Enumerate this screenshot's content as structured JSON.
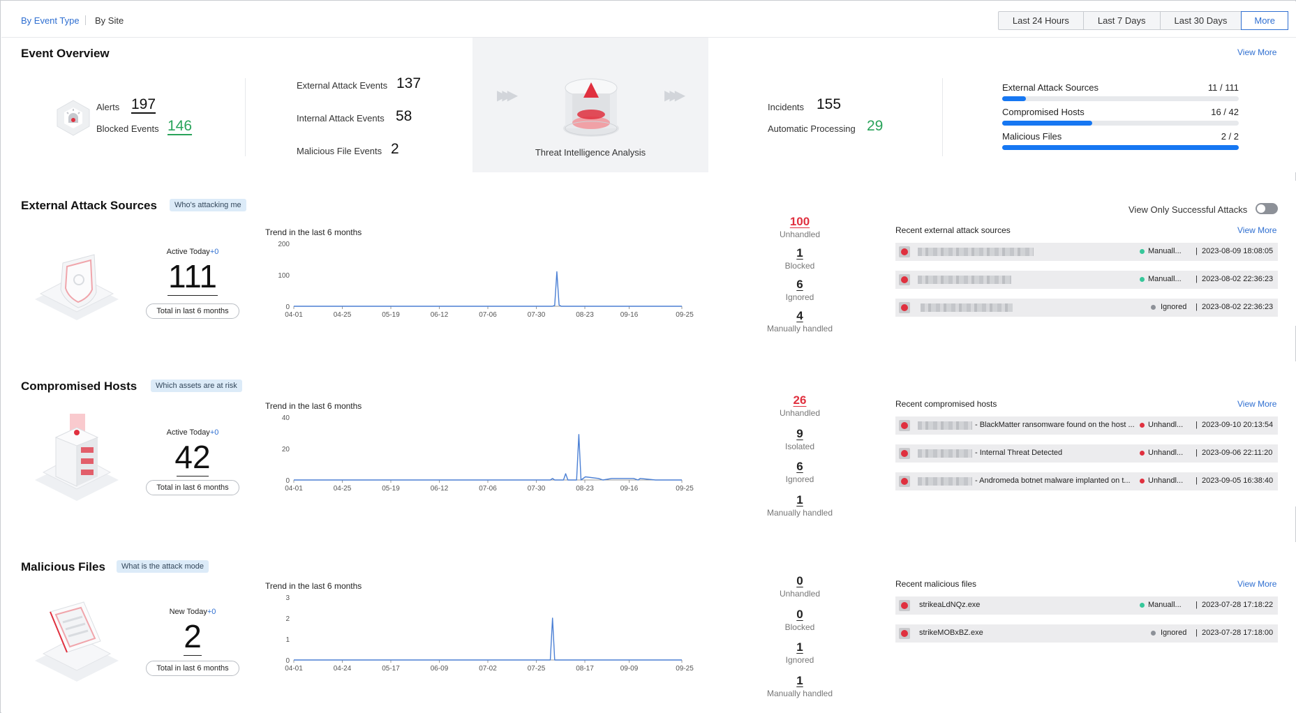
{
  "tabs": {
    "by_event_type": "By Event Type",
    "by_site": "By Site"
  },
  "time_range": [
    "Last 24 Hours",
    "Last 7 Days",
    "Last 30 Days",
    "More"
  ],
  "overview": {
    "title": "Event Overview",
    "view_more": "View More",
    "alerts_label": "Alerts",
    "alerts": "197",
    "blocked_label": "Blocked Events",
    "blocked": "146",
    "ext_label": "External Attack Events",
    "ext": "137",
    "int_label": "Internal Attack Events",
    "int": "58",
    "mal_label": "Malicious File Events",
    "mal": "2",
    "tia_label": "Threat Intelligence Analysis",
    "incidents_label": "Incidents",
    "incidents": "155",
    "auto_label": "Automatic Processing",
    "auto": "29",
    "bars": [
      {
        "label": "External Attack Sources",
        "value": "11 / 111",
        "fraction": 0.099
      },
      {
        "label": "Compromised Hosts",
        "value": "16 / 42",
        "fraction": 0.381
      },
      {
        "label": "Malicious Files",
        "value": "2 / 2",
        "fraction": 1.0
      }
    ]
  },
  "colors": {
    "accent": "#2f6fd1",
    "red": "#e0303f",
    "green": "#29a35a",
    "progress": "#1677f2",
    "line": "#4a7fd4"
  },
  "external": {
    "title": "External Attack Sources",
    "tag": "Who's attacking me",
    "toggle_label": "View Only Successful Attacks",
    "toggle_on": false,
    "active_label": "Active Today",
    "active_delta": "+0",
    "count": "111",
    "total_btn": "Total in last 6 months",
    "trend_title": "Trend in the last 6 months",
    "stats": [
      {
        "n": "100",
        "t": "Unhandled",
        "red": true
      },
      {
        "n": "1",
        "t": "Blocked"
      },
      {
        "n": "6",
        "t": "Ignored"
      },
      {
        "n": "4",
        "t": "Manually handled"
      }
    ],
    "recent_title": "Recent external attack sources",
    "view_more": "View More",
    "recent": [
      {
        "status": "Manuall...",
        "status_color": "#36c79a",
        "time": "2023-08-09 18:08:05"
      },
      {
        "status": "Manuall...",
        "status_color": "#36c79a",
        "time": "2023-08-02 22:36:23"
      },
      {
        "status": "Ignored",
        "status_color": "#8d9198",
        "time": "2023-08-02 22:36:23"
      }
    ]
  },
  "hosts": {
    "title": "Compromised Hosts",
    "tag": "Which assets are at risk",
    "active_label": "Active Today",
    "active_delta": "+0",
    "count": "42",
    "total_btn": "Total in last 6 months",
    "trend_title": "Trend in the last 6 months",
    "stats": [
      {
        "n": "26",
        "t": "Unhandled",
        "red": true
      },
      {
        "n": "9",
        "t": "Isolated"
      },
      {
        "n": "6",
        "t": "Ignored"
      },
      {
        "n": "1",
        "t": "Manually handled"
      }
    ],
    "recent_title": "Recent compromised hosts",
    "view_more": "View More",
    "recent": [
      {
        "name": "- BlackMatter ransomware found on the host ...",
        "status": "Unhandl...",
        "status_color": "#e0303f",
        "time": "2023-09-10 20:13:54"
      },
      {
        "name": "- Internal Threat Detected",
        "status": "Unhandl...",
        "status_color": "#e0303f",
        "time": "2023-09-06 22:11:20"
      },
      {
        "name": "- Andromeda botnet malware implanted on t...",
        "status": "Unhandl...",
        "status_color": "#e0303f",
        "time": "2023-09-05 16:38:40"
      }
    ]
  },
  "files": {
    "title": "Malicious Files",
    "tag": "What is the attack mode",
    "active_label": "New Today",
    "active_delta": "+0",
    "count": "2",
    "total_btn": "Total in last 6 months",
    "trend_title": "Trend in the last 6 months",
    "stats": [
      {
        "n": "0",
        "t": "Unhandled"
      },
      {
        "n": "0",
        "t": "Blocked"
      },
      {
        "n": "1",
        "t": "Ignored"
      },
      {
        "n": "1",
        "t": "Manually handled"
      }
    ],
    "recent_title": "Recent malicious files",
    "view_more": "View More",
    "recent": [
      {
        "name": "strikeaLdNQz.exe",
        "status": "Manuall...",
        "status_color": "#36c79a",
        "time": "2023-07-28 17:18:22"
      },
      {
        "name": "strikeMOBxBZ.exe",
        "status": "Ignored",
        "status_color": "#8d9198",
        "time": "2023-07-28 17:18:00"
      }
    ]
  },
  "chart_data": [
    {
      "type": "line",
      "title": "Trend in the last 6 months",
      "ylim": [
        0,
        200
      ],
      "yticks": [
        0,
        100,
        200
      ],
      "xticks": [
        "04-01",
        "04-25",
        "05-19",
        "06-12",
        "07-06",
        "07-30",
        "08-23",
        "09-16",
        "09-25"
      ],
      "x": [
        "04-01",
        "07-28",
        "07-29",
        "07-30",
        "07-31",
        "08-01",
        "09-25"
      ],
      "series": [
        {
          "values": [
            0,
            0,
            3,
            110,
            4,
            0,
            0
          ]
        }
      ]
    },
    {
      "type": "line",
      "title": "Trend in the last 6 months",
      "ylim": [
        0,
        40
      ],
      "yticks": [
        0,
        20,
        40
      ],
      "xticks": [
        "04-01",
        "04-25",
        "05-19",
        "06-12",
        "07-06",
        "07-30",
        "08-23",
        "09-16",
        "09-25"
      ],
      "x": [
        "04-01",
        "07-27",
        "07-28",
        "07-29",
        "08-02",
        "08-03",
        "08-04",
        "08-08",
        "08-09",
        "08-10",
        "08-12",
        "08-18",
        "08-20",
        "08-24",
        "08-30",
        "09-03",
        "09-05",
        "09-06",
        "09-13",
        "09-25"
      ],
      "series": [
        {
          "values": [
            0,
            0,
            1,
            0,
            0,
            4,
            0,
            0,
            29,
            0,
            2,
            1,
            0,
            1,
            1,
            1,
            0,
            1,
            0,
            0
          ]
        }
      ]
    },
    {
      "type": "line",
      "title": "Trend in the last 6 months",
      "ylim": [
        0,
        3
      ],
      "yticks": [
        0,
        1,
        2,
        3
      ],
      "xticks": [
        "04-01",
        "04-24",
        "05-17",
        "06-09",
        "07-02",
        "07-25",
        "08-17",
        "09-09",
        "09-25"
      ],
      "x": [
        "04-01",
        "07-27",
        "07-28",
        "07-29",
        "09-25"
      ],
      "series": [
        {
          "values": [
            0,
            0,
            2,
            0,
            0
          ]
        }
      ]
    }
  ]
}
